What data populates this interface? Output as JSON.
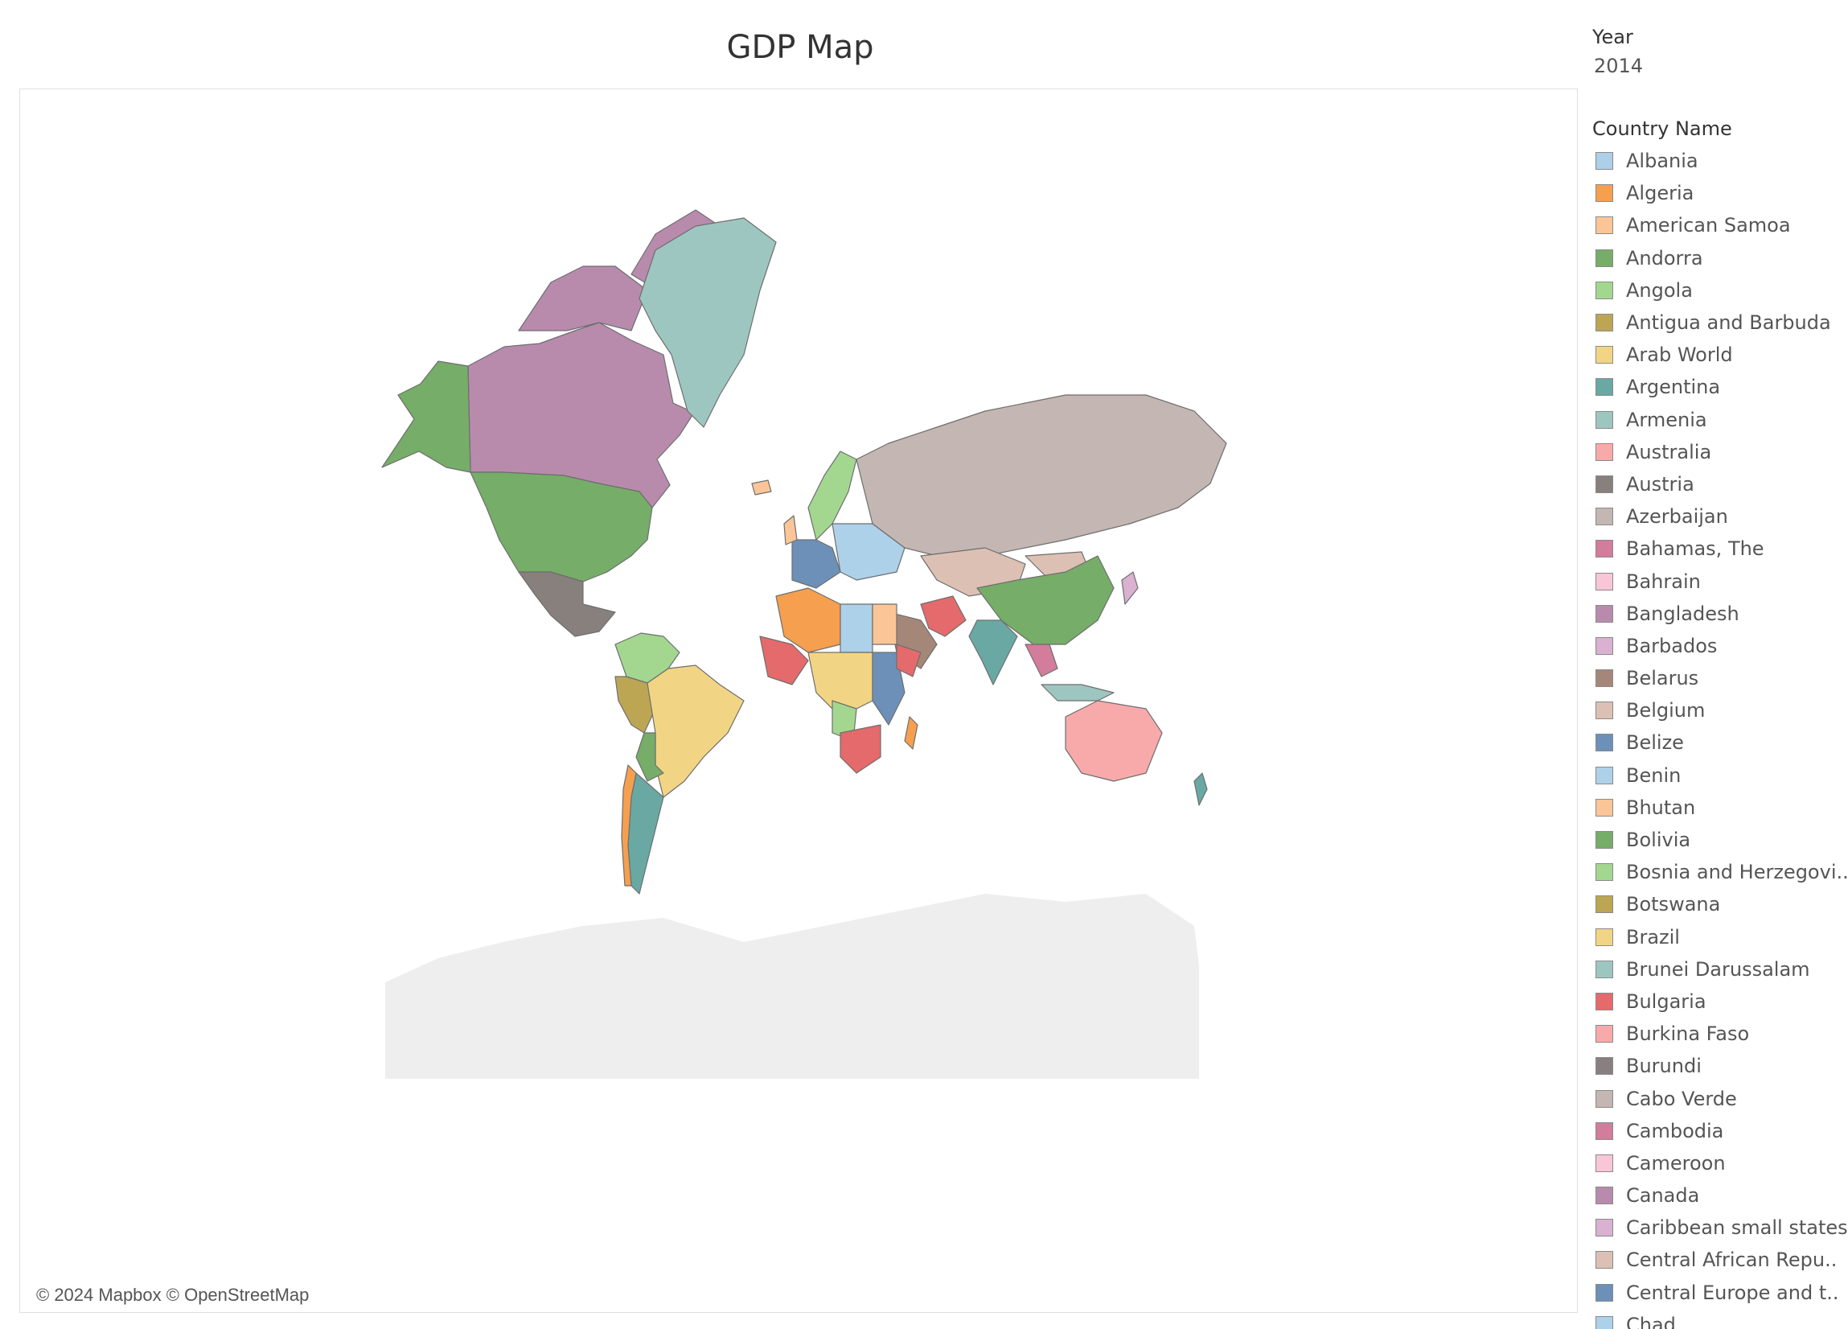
{
  "title": "GDP Map",
  "filter": {
    "label": "Year",
    "value": "2014"
  },
  "legend": {
    "title": "Country Name",
    "items": [
      {
        "label": "Albania",
        "color": "#aecfe8"
      },
      {
        "label": "Algeria",
        "color": "#f59f4f"
      },
      {
        "label": "American Samoa",
        "color": "#fbc597"
      },
      {
        "label": "Andorra",
        "color": "#76ad68"
      },
      {
        "label": "Angola",
        "color": "#a3d790"
      },
      {
        "label": "Antigua and Barbuda",
        "color": "#bca654"
      },
      {
        "label": "Arab World",
        "color": "#f2d584"
      },
      {
        "label": "Argentina",
        "color": "#6aa8a3"
      },
      {
        "label": "Armenia",
        "color": "#9ec6c1"
      },
      {
        "label": "Australia",
        "color": "#f8aaab"
      },
      {
        "label": "Austria",
        "color": "#87807d"
      },
      {
        "label": "Azerbaijan",
        "color": "#c3b6b3"
      },
      {
        "label": "Bahamas, The",
        "color": "#d37c9c"
      },
      {
        "label": "Bahrain",
        "color": "#f8c6d6"
      },
      {
        "label": "Bangladesh",
        "color": "#b88bad"
      },
      {
        "label": "Barbados",
        "color": "#d9b1d1"
      },
      {
        "label": "Belarus",
        "color": "#a5877a"
      },
      {
        "label": "Belgium",
        "color": "#dcc0b3"
      },
      {
        "label": "Belize",
        "color": "#6d90b8"
      },
      {
        "label": "Benin",
        "color": "#aed1ea"
      },
      {
        "label": "Bhutan",
        "color": "#fbc597"
      },
      {
        "label": "Bolivia",
        "color": "#76ad68"
      },
      {
        "label": "Bosnia and Herzegovi..",
        "color": "#a3d790"
      },
      {
        "label": "Botswana",
        "color": "#bca654"
      },
      {
        "label": "Brazil",
        "color": "#f2d584"
      },
      {
        "label": "Brunei Darussalam",
        "color": "#9ec6c1"
      },
      {
        "label": "Bulgaria",
        "color": "#e46a6b"
      },
      {
        "label": "Burkina Faso",
        "color": "#f8aaab"
      },
      {
        "label": "Burundi",
        "color": "#8a7f80"
      },
      {
        "label": "Cabo Verde",
        "color": "#c3b6b3"
      },
      {
        "label": "Cambodia",
        "color": "#d37c9c"
      },
      {
        "label": "Cameroon",
        "color": "#f8c6d6"
      },
      {
        "label": "Canada",
        "color": "#b88bad"
      },
      {
        "label": "Caribbean small states",
        "color": "#d9b1d1"
      },
      {
        "label": "Central African Repu..",
        "color": "#dcc0b3"
      },
      {
        "label": "Central Europe and t..",
        "color": "#6d90b8"
      },
      {
        "label": "Chad",
        "color": "#aed1ea"
      }
    ]
  },
  "map": {
    "attribution": "© 2024 Mapbox © OpenStreetMap",
    "ocean_color": "#ffffff",
    "antarctica_color": "#eeeeee",
    "regions": [
      {
        "name": "Canada",
        "color": "#b88bad"
      },
      {
        "name": "Alaska",
        "color": "#76ad68"
      },
      {
        "name": "Greenland",
        "color": "#9ec6c1"
      },
      {
        "name": "United States",
        "color": "#76ad68"
      },
      {
        "name": "Mexico",
        "color": "#87807d"
      },
      {
        "name": "Colombia-Venezuela",
        "color": "#a3d790"
      },
      {
        "name": "Peru",
        "color": "#bca654"
      },
      {
        "name": "Brazil",
        "color": "#f2d584"
      },
      {
        "name": "Bolivia",
        "color": "#76ad68"
      },
      {
        "name": "Argentina",
        "color": "#6aa8a3"
      },
      {
        "name": "Chile",
        "color": "#f59f4f"
      },
      {
        "name": "Scandinavia",
        "color": "#a3d790"
      },
      {
        "name": "Western Europe",
        "color": "#6d90b8"
      },
      {
        "name": "Eastern Europe",
        "color": "#aed1ea"
      },
      {
        "name": "Russia",
        "color": "#c3b6b3"
      },
      {
        "name": "Kazakhstan",
        "color": "#dcc0b3"
      },
      {
        "name": "Mongolia",
        "color": "#dcc0b3"
      },
      {
        "name": "China",
        "color": "#76ad68"
      },
      {
        "name": "India",
        "color": "#6aa8a3"
      },
      {
        "name": "Iran",
        "color": "#e46a6b"
      },
      {
        "name": "Arabian Peninsula",
        "color": "#a5877a"
      },
      {
        "name": "North Africa West",
        "color": "#f59f4f"
      },
      {
        "name": "Libya",
        "color": "#aed1ea"
      },
      {
        "name": "Egypt",
        "color": "#fbc597"
      },
      {
        "name": "West Africa",
        "color": "#e46a6b"
      },
      {
        "name": "Central Africa",
        "color": "#f2d584"
      },
      {
        "name": "East Africa",
        "color": "#6d90b8"
      },
      {
        "name": "Ethiopia",
        "color": "#e46a6b"
      },
      {
        "name": "Angola",
        "color": "#a3d790"
      },
      {
        "name": "Southern Africa",
        "color": "#e46a6b"
      },
      {
        "name": "Madagascar",
        "color": "#f59f4f"
      },
      {
        "name": "Southeast Asia",
        "color": "#d37c9c"
      },
      {
        "name": "Indonesia",
        "color": "#9ec6c1"
      },
      {
        "name": "Japan",
        "color": "#d9b1d1"
      },
      {
        "name": "Australia",
        "color": "#f8aaab"
      },
      {
        "name": "New Zealand",
        "color": "#6aa8a3"
      },
      {
        "name": "Iceland",
        "color": "#fbc597"
      },
      {
        "name": "UK",
        "color": "#fbc597"
      },
      {
        "name": "Antarctica",
        "color": "#eeeeee"
      }
    ]
  }
}
